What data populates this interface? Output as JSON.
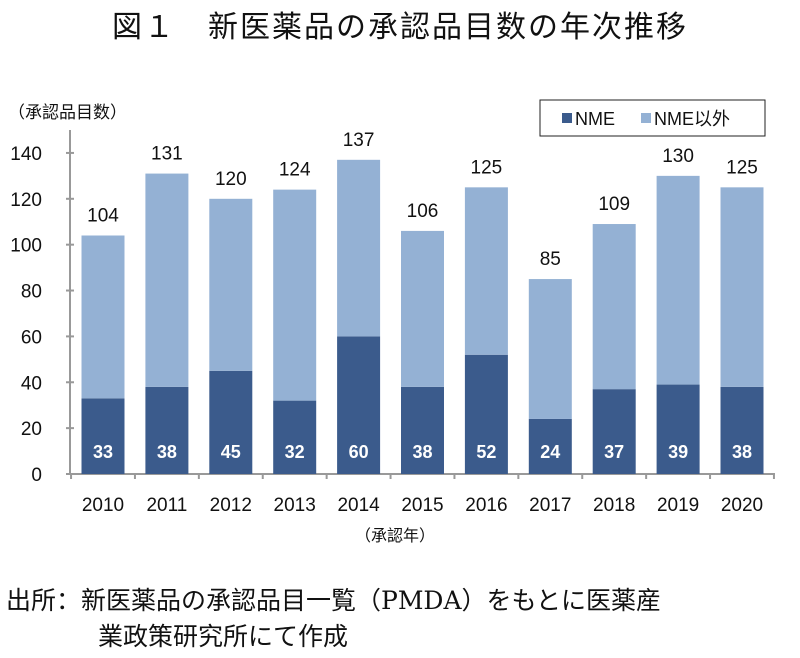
{
  "title": "図１　新医薬品の承認品目数の年次推移",
  "source_line1": "出所：新医薬品の承認品目一覧（PMDA）をもとに医薬産",
  "source_line2": "業政策研究所にて作成",
  "chart_data": {
    "type": "bar",
    "stacked": true,
    "title": "図１　新医薬品の承認品目数の年次推移",
    "ylabel": "（承認品目数）",
    "xlabel": "（承認年）",
    "ylim": [
      0,
      150
    ],
    "yticks": [
      0,
      20,
      40,
      60,
      80,
      100,
      120,
      140
    ],
    "grid": false,
    "legend_position": "top-right",
    "categories": [
      "2010",
      "2011",
      "2012",
      "2013",
      "2014",
      "2015",
      "2016",
      "2017",
      "2018",
      "2019",
      "2020"
    ],
    "series": [
      {
        "name": "NME",
        "color": "#3b5b8c",
        "values": [
          33,
          38,
          45,
          32,
          60,
          38,
          52,
          24,
          37,
          39,
          38
        ]
      },
      {
        "name": "NME以外",
        "color": "#94b1d4",
        "values": [
          71,
          93,
          75,
          92,
          77,
          68,
          73,
          61,
          72,
          91,
          87
        ]
      }
    ],
    "totals": [
      104,
      131,
      120,
      124,
      137,
      106,
      125,
      85,
      109,
      130,
      125
    ]
  }
}
